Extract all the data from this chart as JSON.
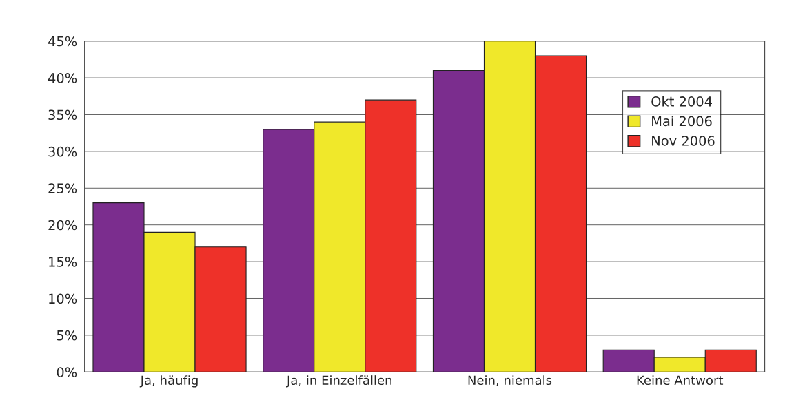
{
  "chart_data": {
    "type": "bar",
    "categories": [
      "Ja, häufig",
      "Ja, in Einzelfällen",
      "Nein, niemals",
      "Keine Antwort"
    ],
    "series": [
      {
        "name": "Okt 2004",
        "color": "#7b2d8e",
        "values": [
          23,
          33,
          41,
          3
        ]
      },
      {
        "name": "Mai 2006",
        "color": "#f0e82a",
        "values": [
          19,
          34,
          45,
          2
        ]
      },
      {
        "name": "Nov 2006",
        "color": "#ee3129",
        "values": [
          17,
          37,
          43,
          3
        ]
      }
    ],
    "ylim": [
      0,
      45
    ],
    "yticks": [
      {
        "value": 0,
        "label": "0%"
      },
      {
        "value": 5,
        "label": "5%"
      },
      {
        "value": 10,
        "label": "10%"
      },
      {
        "value": 15,
        "label": "15%"
      },
      {
        "value": 20,
        "label": "20%"
      },
      {
        "value": 25,
        "label": "25%"
      },
      {
        "value": 30,
        "label": "30%"
      },
      {
        "value": 35,
        "label": "35%"
      },
      {
        "value": 40,
        "label": "40%"
      },
      {
        "value": 45,
        "label": "45%"
      }
    ],
    "grid": "y",
    "legend": "top right"
  }
}
